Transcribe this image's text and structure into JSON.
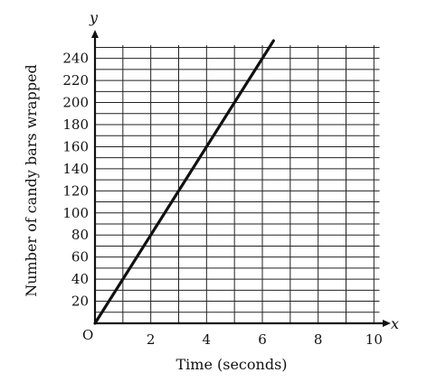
{
  "chart_data": {
    "type": "line",
    "title": "",
    "xlabel": "Time (seconds)",
    "ylabel": "Number of candy bars wrapped",
    "x_axis_letter": "x",
    "y_axis_letter": "y",
    "origin_label": "O",
    "xlim": [
      0,
      10.2
    ],
    "ylim": [
      0,
      252
    ],
    "x_ticks": [
      2,
      4,
      6,
      8,
      10
    ],
    "y_ticks": [
      20,
      40,
      60,
      80,
      100,
      120,
      140,
      160,
      180,
      200,
      220,
      240
    ],
    "x_grid_step": 1,
    "y_grid_step": 10,
    "grid": true,
    "series": [
      {
        "x": [
          0,
          6.4
        ],
        "y": [
          0,
          256
        ]
      }
    ],
    "colors": {
      "line": "#111111",
      "grid": "#222222",
      "axis": "#111111"
    }
  }
}
